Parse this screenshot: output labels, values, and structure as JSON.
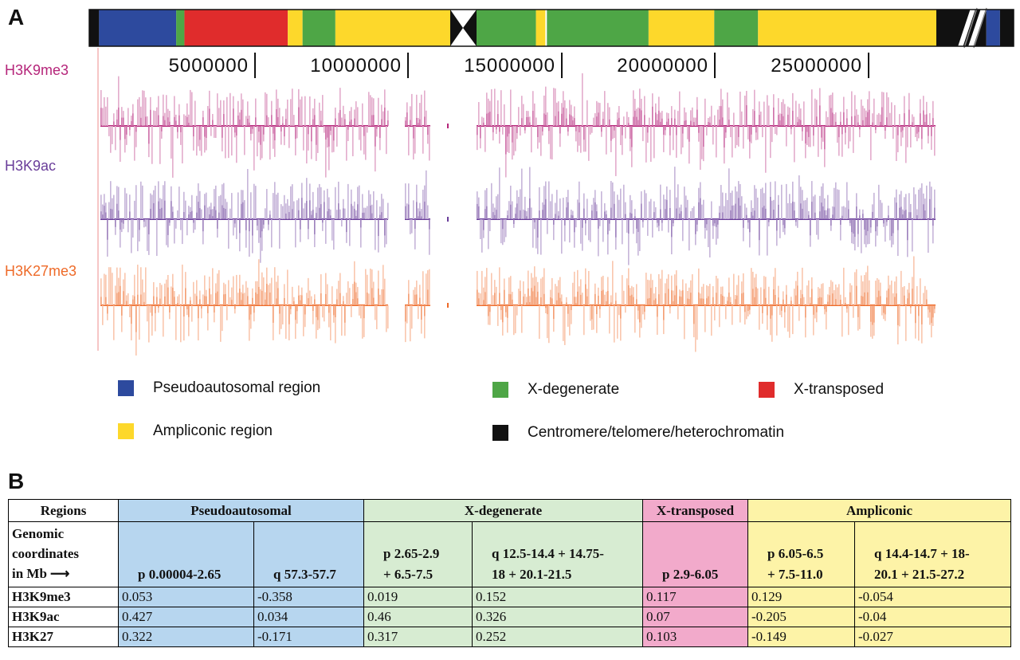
{
  "panel_a": {
    "label": "A",
    "colors": {
      "pseudoautosomal": "#2d4a9e",
      "x_degenerate": "#4ea646",
      "x_transposed": "#e02c2c",
      "ampliconic": "#fdd82b",
      "heterochromatin": "#111111",
      "h3k9me3": "#b5257a",
      "h3k9ac": "#6a3d9a",
      "h3k27me3": "#ee6a28"
    },
    "chromosome_segments": [
      {
        "region": "heterochromatin",
        "start": 0,
        "end": 0.3
      },
      {
        "region": "pseudoautosomal",
        "start": 0.3,
        "end": 2.65
      },
      {
        "region": "x_degenerate",
        "start": 2.65,
        "end": 2.9
      },
      {
        "region": "x_transposed",
        "start": 2.9,
        "end": 6.05
      },
      {
        "region": "ampliconic",
        "start": 6.05,
        "end": 6.5
      },
      {
        "region": "x_degenerate",
        "start": 6.5,
        "end": 7.5
      },
      {
        "region": "ampliconic",
        "start": 7.5,
        "end": 11.0
      },
      {
        "region": "heterochromatin",
        "start": 11.0,
        "end": 12.5
      },
      {
        "region": "x_degenerate",
        "start": 12.5,
        "end": 14.4
      },
      {
        "region": "ampliconic",
        "start": 14.4,
        "end": 14.7
      },
      {
        "region": "x_degenerate",
        "start": 14.75,
        "end": 18.0
      },
      {
        "region": "ampliconic",
        "start": 18.0,
        "end": 20.1
      },
      {
        "region": "x_degenerate",
        "start": 20.1,
        "end": 21.5
      },
      {
        "region": "ampliconic",
        "start": 21.5,
        "end": 27.2
      },
      {
        "region": "heterochromatin",
        "start": 27.2,
        "end": 28.3
      },
      {
        "region": "pseudoautosomal",
        "start": 28.3,
        "end": 28.6
      },
      {
        "region": "heterochromatin",
        "start": 28.6,
        "end": 28.9
      }
    ],
    "axis_ticks": [
      "5000000",
      "10000000",
      "15000000",
      "20000000",
      "25000000"
    ],
    "tracks": [
      {
        "name": "H3K9me3",
        "color_key": "h3k9me3"
      },
      {
        "name": "H3K9ac",
        "color_key": "h3k9ac"
      },
      {
        "name": "H3K27me3",
        "color_key": "h3k27me3"
      }
    ],
    "legend": [
      {
        "label": "Pseudoautosomal region",
        "color_key": "pseudoautosomal"
      },
      {
        "label": "X-degenerate",
        "color_key": "x_degenerate"
      },
      {
        "label": "X-transposed",
        "color_key": "x_transposed"
      },
      {
        "label": "Ampliconic region",
        "color_key": "ampliconic"
      },
      {
        "label": "Centromere/telomere/heterochromatin",
        "color_key": "heterochromatin"
      }
    ]
  },
  "panel_b": {
    "label": "B",
    "colors": {
      "pseudoautosomal": "#b7d6ef",
      "x_degenerate": "#d7ecd2",
      "x_transposed": "#f2aacb",
      "ampliconic": "#fdf3a7"
    },
    "header": {
      "regions_label": "Regions",
      "groups": [
        "Pseudoautosomal",
        "X-degenerate",
        "X-transposed",
        "Ampliconic"
      ],
      "coords_label_lines": [
        "Genomic",
        "coordinates",
        "in Mb"
      ],
      "arrow": "⟶"
    },
    "columns": [
      {
        "coord_lines": [
          "p 0.00004-2.65"
        ],
        "group": "pseudoautosomal"
      },
      {
        "coord_lines": [
          "q 57.3-57.7"
        ],
        "group": "pseudoautosomal"
      },
      {
        "coord_lines": [
          "p 2.65-2.9",
          "+ 6.5-7.5"
        ],
        "group": "x_degenerate"
      },
      {
        "coord_lines": [
          "q 12.5-14.4 + 14.75-",
          "18 + 20.1-21.5"
        ],
        "group": "x_degenerate"
      },
      {
        "coord_lines": [
          "p 2.9-6.05"
        ],
        "group": "x_transposed"
      },
      {
        "coord_lines": [
          "p 6.05-6.5",
          "+ 7.5-11.0"
        ],
        "group": "ampliconic"
      },
      {
        "coord_lines": [
          "q 14.4-14.7 + 18-",
          "20.1 + 21.5-27.2"
        ],
        "group": "ampliconic"
      }
    ],
    "rows": [
      {
        "name": "H3K9me3",
        "values": [
          "0.053",
          "-0.358",
          "0.019",
          "0.152",
          "0.117",
          "0.129",
          "-0.054"
        ]
      },
      {
        "name": "H3K9ac",
        "values": [
          "0.427",
          "0.034",
          "0.46",
          "0.326",
          "0.07",
          "-0.205",
          "-0.04"
        ]
      },
      {
        "name": "H3K27",
        "values": [
          "0.322",
          "-0.171",
          "0.317",
          "0.252",
          "0.103",
          "-0.149",
          "-0.027"
        ]
      }
    ]
  }
}
